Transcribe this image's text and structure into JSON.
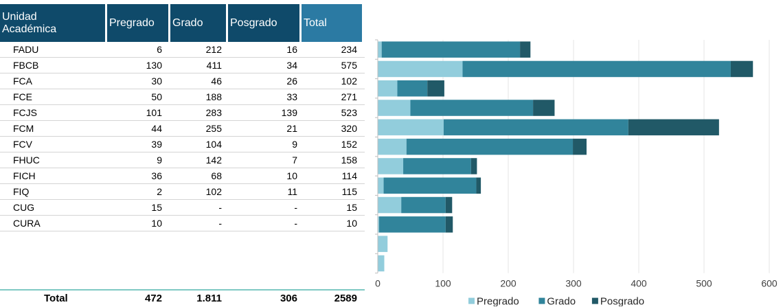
{
  "table": {
    "headers": {
      "unidad": "Unidad\nAcadémica",
      "pregrado": "Pregrado",
      "grado": "Grado",
      "posgrado": "Posgrado",
      "total": "Total"
    },
    "header_colors": {
      "main": "#0f4a6a",
      "total": "#2b7aa3"
    },
    "rows": [
      {
        "unidad": "FADU",
        "pregrado": "6",
        "grado": "212",
        "posgrado": "16",
        "total": "234"
      },
      {
        "unidad": "FBCB",
        "pregrado": "130",
        "grado": "411",
        "posgrado": "34",
        "total": "575"
      },
      {
        "unidad": "FCA",
        "pregrado": "30",
        "grado": "46",
        "posgrado": "26",
        "total": "102"
      },
      {
        "unidad": "FCE",
        "pregrado": "50",
        "grado": "188",
        "posgrado": "33",
        "total": "271"
      },
      {
        "unidad": "FCJS",
        "pregrado": "101",
        "grado": "283",
        "posgrado": "139",
        "total": "523"
      },
      {
        "unidad": "FCM",
        "pregrado": "44",
        "grado": "255",
        "posgrado": "21",
        "total": "320"
      },
      {
        "unidad": "FCV",
        "pregrado": "39",
        "grado": "104",
        "posgrado": "9",
        "total": "152"
      },
      {
        "unidad": "FHUC",
        "pregrado": "9",
        "grado": "142",
        "posgrado": "7",
        "total": "158"
      },
      {
        "unidad": "FICH",
        "pregrado": "36",
        "grado": "68",
        "posgrado": "10",
        "total": "114"
      },
      {
        "unidad": "FIQ",
        "pregrado": "2",
        "grado": "102",
        "posgrado": "11",
        "total": "115"
      },
      {
        "unidad": "CUG",
        "pregrado": "15",
        "grado": "-",
        "posgrado": "-",
        "total": "15"
      },
      {
        "unidad": "CURA",
        "pregrado": "10",
        "grado": "-",
        "posgrado": "-",
        "total": "10"
      }
    ],
    "total_row": {
      "label": "Total",
      "pregrado": "472",
      "grado": "1.811",
      "posgrado": "306",
      "total": "2589"
    }
  },
  "chart_data": {
    "type": "bar",
    "orientation": "horizontal",
    "stacked": true,
    "categories": [
      "FADU",
      "FBCB",
      "FCA",
      "FCE",
      "FCJS",
      "FCM",
      "FCV",
      "FHUC",
      "FICH",
      "FIQ",
      "CUG",
      "CURA"
    ],
    "series": [
      {
        "name": "Pregrado",
        "color": "#92cddc",
        "values": [
          6,
          130,
          30,
          50,
          101,
          44,
          39,
          9,
          36,
          2,
          15,
          10
        ]
      },
      {
        "name": "Grado",
        "color": "#31849b",
        "values": [
          212,
          411,
          46,
          188,
          283,
          255,
          104,
          142,
          68,
          102,
          0,
          0
        ]
      },
      {
        "name": "Posgrado",
        "color": "#215967",
        "values": [
          16,
          34,
          26,
          33,
          139,
          21,
          9,
          7,
          10,
          11,
          0,
          0
        ]
      }
    ],
    "xlim": [
      0,
      600
    ],
    "xticks": [
      "0",
      "100",
      "200",
      "300",
      "400",
      "500",
      "600"
    ],
    "grid": true,
    "legend_position": "bottom"
  }
}
